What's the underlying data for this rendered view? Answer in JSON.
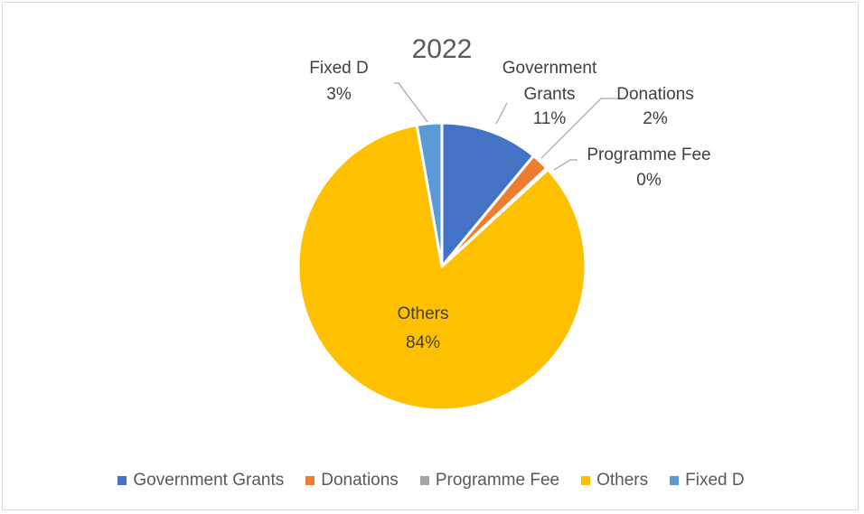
{
  "chart_data": {
    "type": "pie",
    "title": "2022",
    "slices": [
      {
        "name": "Government Grants",
        "label_lines": [
          "Government",
          "Grants"
        ],
        "value": 11,
        "display": "11%",
        "color": "#4472C4"
      },
      {
        "name": "Donations",
        "label_lines": [
          "Donations"
        ],
        "value": 2,
        "display": "2%",
        "color": "#ED7D31"
      },
      {
        "name": "Programme Fee",
        "label_lines": [
          "Programme Fee"
        ],
        "value": 0.2,
        "display": "0%",
        "color": "#A5A5A5"
      },
      {
        "name": "Others",
        "label_lines": [
          "Others"
        ],
        "value": 84,
        "display": "84%",
        "color": "#FFC000"
      },
      {
        "name": "Fixed D",
        "label_lines": [
          "Fixed D"
        ],
        "value": 2.8,
        "display": "3%",
        "color": "#5B9BD5"
      }
    ],
    "legend": {
      "position": "bottom"
    }
  }
}
